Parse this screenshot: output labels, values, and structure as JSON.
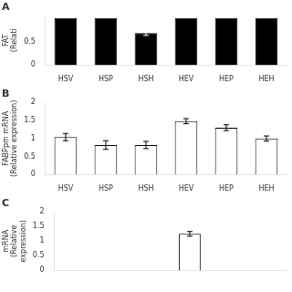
{
  "chart_data": [
    {
      "type": "bar",
      "title": "A",
      "ylabel": "FAT\n(Relati",
      "categories": [
        "HSV",
        "HSP",
        "HSH",
        "HEV",
        "HEP",
        "HEH"
      ],
      "values": [
        1.0,
        1.0,
        0.68,
        1.0,
        1.0,
        1.0
      ],
      "errors": [
        0.0,
        0.0,
        0.05,
        0.0,
        0.0,
        0.0
      ],
      "color": "black",
      "ylim": [
        0,
        1.05
      ],
      "yticks": [
        0,
        0.5
      ],
      "grid": false
    },
    {
      "type": "bar",
      "title": "B",
      "ylabel": "FABPpm mRNA\n(Relative expression)",
      "categories": [
        "HSV",
        "HSP",
        "HSH",
        "HEV",
        "HEP",
        "HEH"
      ],
      "values": [
        1.04,
        0.82,
        0.82,
        1.48,
        1.3,
        1.0
      ],
      "errors": [
        0.1,
        0.12,
        0.1,
        0.07,
        0.08,
        0.07
      ],
      "color": "white",
      "ylim": [
        0,
        2.0
      ],
      "yticks": [
        0,
        0.5,
        1,
        1.5,
        2
      ],
      "grid": false
    },
    {
      "type": "bar",
      "title": "C",
      "ylabel": "mRNA\n(Relative\nexpression)",
      "categories": [
        null,
        null,
        null,
        null,
        null,
        null
      ],
      "values": [
        0.0,
        0.0,
        0.0,
        1.25,
        0.0,
        0.0
      ],
      "errors": [
        0.0,
        0.0,
        0.0,
        0.08,
        0.0,
        0.0
      ],
      "color": "white",
      "ylim": [
        0,
        2.0
      ],
      "yticks": [
        0,
        0.5,
        1,
        1.5,
        2
      ],
      "grid": false
    }
  ]
}
